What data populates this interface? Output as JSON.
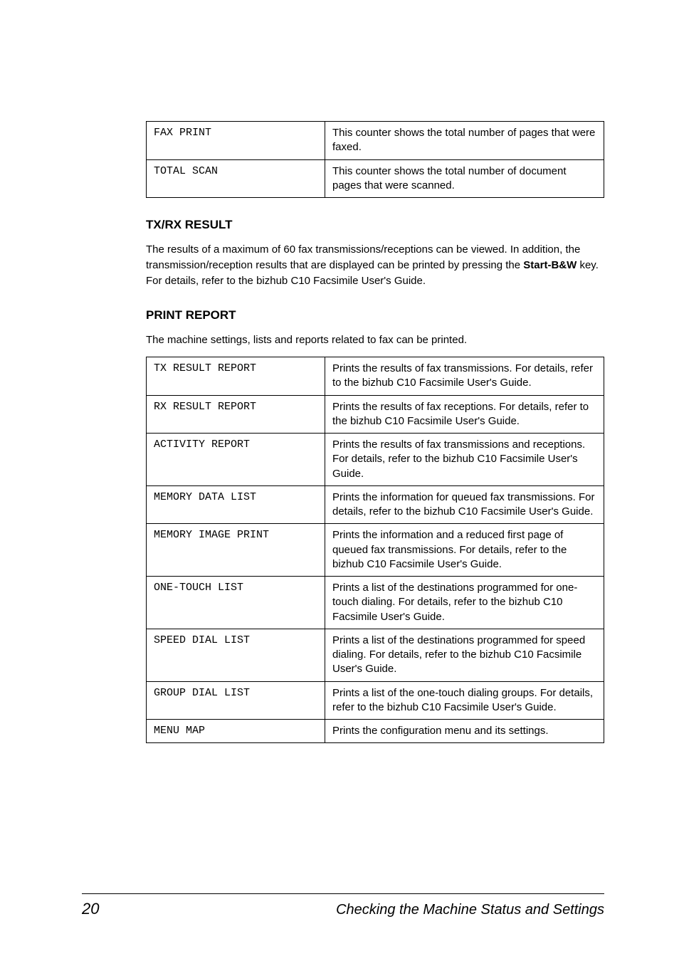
{
  "top_table": {
    "rows": [
      {
        "code": "FAX PRINT",
        "desc": "This counter shows the total number of pages that were faxed."
      },
      {
        "code": "TOTAL SCAN",
        "desc": "This counter shows the total number of document pages that were scanned."
      }
    ]
  },
  "section_txrx": {
    "heading": "TX/RX RESULT",
    "para_parts": {
      "p1": "The results of a maximum of 60 fax transmissions/receptions can be viewed. In addition, the transmission/reception results that are displayed can be printed by pressing the ",
      "bold": "Start-B&W",
      "p2": " key. For details, refer to the bizhub C10 Facsimile User's Guide."
    }
  },
  "section_print": {
    "heading": "PRINT REPORT",
    "para": "The machine settings, lists and reports related to fax can be printed.",
    "rows": [
      {
        "code": "TX RESULT REPORT",
        "desc": "Prints the results of fax transmissions. For details, refer to the bizhub C10 Facsimile User's Guide."
      },
      {
        "code": "RX RESULT REPORT",
        "desc": "Prints the results of fax receptions. For details, refer to the bizhub C10 Facsimile User's Guide."
      },
      {
        "code": "ACTIVITY REPORT",
        "desc": "Prints the results of fax transmissions and receptions. For details, refer to the bizhub C10 Facsimile User's Guide."
      },
      {
        "code": "MEMORY DATA LIST",
        "desc": "Prints the information for queued fax transmissions. For details, refer to the bizhub C10 Facsimile User's Guide."
      },
      {
        "code": "MEMORY IMAGE PRINT",
        "desc": "Prints the information and a reduced first page of queued fax transmissions. For details, refer to the bizhub C10 Facsimile User's Guide."
      },
      {
        "code": "ONE-TOUCH LIST",
        "desc": "Prints a list of the destinations programmed for one-touch dialing. For details, refer to the bizhub C10 Facsimile User's Guide."
      },
      {
        "code": "SPEED DIAL LIST",
        "desc": "Prints a list of the destinations programmed for speed dialing. For details, refer to the bizhub C10 Facsimile User's Guide."
      },
      {
        "code": "GROUP DIAL LIST",
        "desc": "Prints a list of the one-touch dialing groups. For details, refer to the bizhub C10 Facsimile User's Guide."
      },
      {
        "code": "MENU MAP",
        "desc": "Prints the configuration menu and its settings."
      }
    ]
  },
  "footer": {
    "page_number": "20",
    "title": "Checking the Machine Status and Settings"
  }
}
